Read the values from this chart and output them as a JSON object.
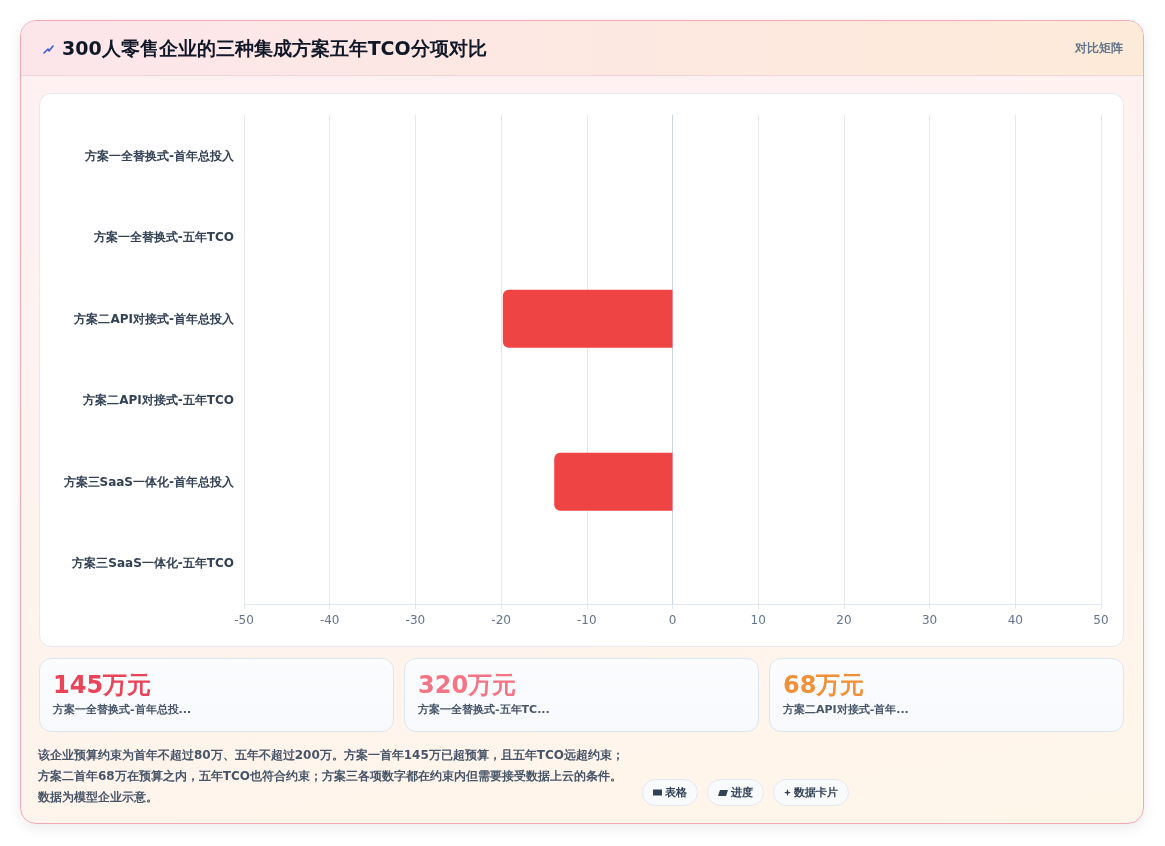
{
  "chart_data": [
    {
      "type": "bar",
      "title": "300人零售企业的三种集成方案五年TCO分项对比",
      "annotations": [
        "对比矩阵"
      ],
      "orientation": "horizontal",
      "categories": [
        "方案一全替换式-首年总投入",
        "方案一全替换式-五年TCO",
        "方案二API对接式-首年总投入",
        "方案二API对接式-五年TCO",
        "方案三SaaS一体化-首年总投入",
        "方案三SaaS一体化-五年TCO"
      ],
      "values": [
        null,
        null,
        -19.8,
        null,
        -13.8,
        null
      ],
      "color": "#ef4444",
      "xlim": [
        -50,
        50
      ],
      "xticks": [
        -50,
        -40,
        -30,
        -20,
        -10,
        0,
        10,
        20,
        30,
        40,
        50
      ],
      "grid": "x"
    },
    {
      "type": "other",
      "title": "145万元",
      "subtitle": "方案一全替换式-首年总投...",
      "color": "#e8445a"
    },
    {
      "type": "other",
      "title": "320万元",
      "subtitle": "方案一全替换式-五年TC...",
      "color": "#f27585"
    },
    {
      "type": "other",
      "title": "68万元",
      "subtitle": "方案二API对接式-首年...",
      "color": "#f0913a"
    },
    {
      "type": "other",
      "annotations": [
        "该企业预算约束为首年不超过80万、五年不超过200万。方案一首年145万已超预算，且五年TCO远超约束；方案二首年68万在预算之内，五年TCO也符合约束；方案三各项数字都在约束内但需要接受数据上云的条件。数据为模型企业示意。",
        "表格",
        "进度",
        "数据卡片"
      ]
    }
  ]
}
